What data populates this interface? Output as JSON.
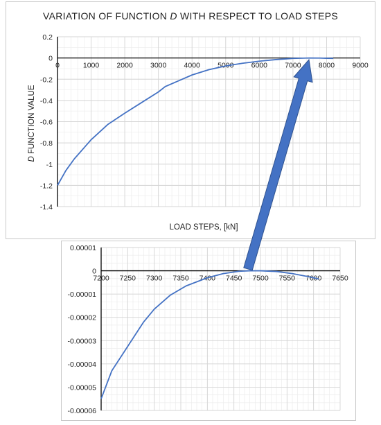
{
  "chart_data": [
    {
      "type": "line",
      "title_parts": [
        "VARIATION OF FUNCTION ",
        "D",
        " WITH RESPECT TO LOAD STEPS"
      ],
      "xlabel": "LOAD STEPS, [kN]",
      "ylabel_parts": [
        "D",
        " FUNCTION VALUE"
      ],
      "xlim": [
        0,
        9000
      ],
      "ylim": [
        -1.4,
        0.2
      ],
      "x_ticks": [
        "0",
        "1000",
        "2000",
        "3000",
        "4000",
        "5000",
        "6000",
        "7000",
        "8000",
        "9000"
      ],
      "y_ticks": [
        "0.2",
        "0",
        "-0.2",
        "-0.4",
        "-0.6",
        "-0.8",
        "-1",
        "-1.2",
        "-1.4"
      ],
      "grid": true,
      "series": [
        {
          "color": "#4472c4",
          "x": [
            0,
            250,
            500,
            1000,
            1500,
            2000,
            2500,
            3000,
            3200,
            4000,
            4500,
            5000,
            5500,
            6000,
            6500,
            7000,
            7500,
            7800,
            8000,
            8200
          ],
          "y": [
            -1.2,
            -1.06,
            -0.95,
            -0.77,
            -0.625,
            -0.52,
            -0.42,
            -0.32,
            -0.27,
            -0.16,
            -0.11,
            -0.075,
            -0.05,
            -0.03,
            -0.015,
            -0.004,
            0,
            -0.001,
            -0.003,
            -0.004
          ]
        }
      ]
    },
    {
      "type": "line",
      "xlim": [
        7200,
        7650
      ],
      "ylim": [
        -6e-05,
        1e-05
      ],
      "x_ticks": [
        "7200",
        "7250",
        "7300",
        "7350",
        "7400",
        "7450",
        "7500",
        "7550",
        "7600",
        "7650"
      ],
      "y_ticks": [
        "0.00001",
        "0",
        "-0.00001",
        "-0.00002",
        "-0.00003",
        "-0.00004",
        "-0.00005",
        "-0.00006"
      ],
      "grid": true,
      "series": [
        {
          "color": "#4472c4",
          "x": [
            7200,
            7220,
            7250,
            7280,
            7300,
            7330,
            7360,
            7400,
            7430,
            7460,
            7480,
            7500,
            7530,
            7560,
            7590,
            7610
          ],
          "y": [
            -5.5e-05,
            -4.3e-05,
            -3.25e-05,
            -2.2e-05,
            -1.65e-05,
            -1.05e-05,
            -6.5e-06,
            -3e-06,
            -1.2e-06,
            -2e-07,
            0,
            0,
            -3e-07,
            -1.2e-06,
            -2.5e-06,
            -3.5e-06
          ]
        }
      ]
    }
  ],
  "annotation": {
    "type": "arrow",
    "color": "#4472c4"
  }
}
